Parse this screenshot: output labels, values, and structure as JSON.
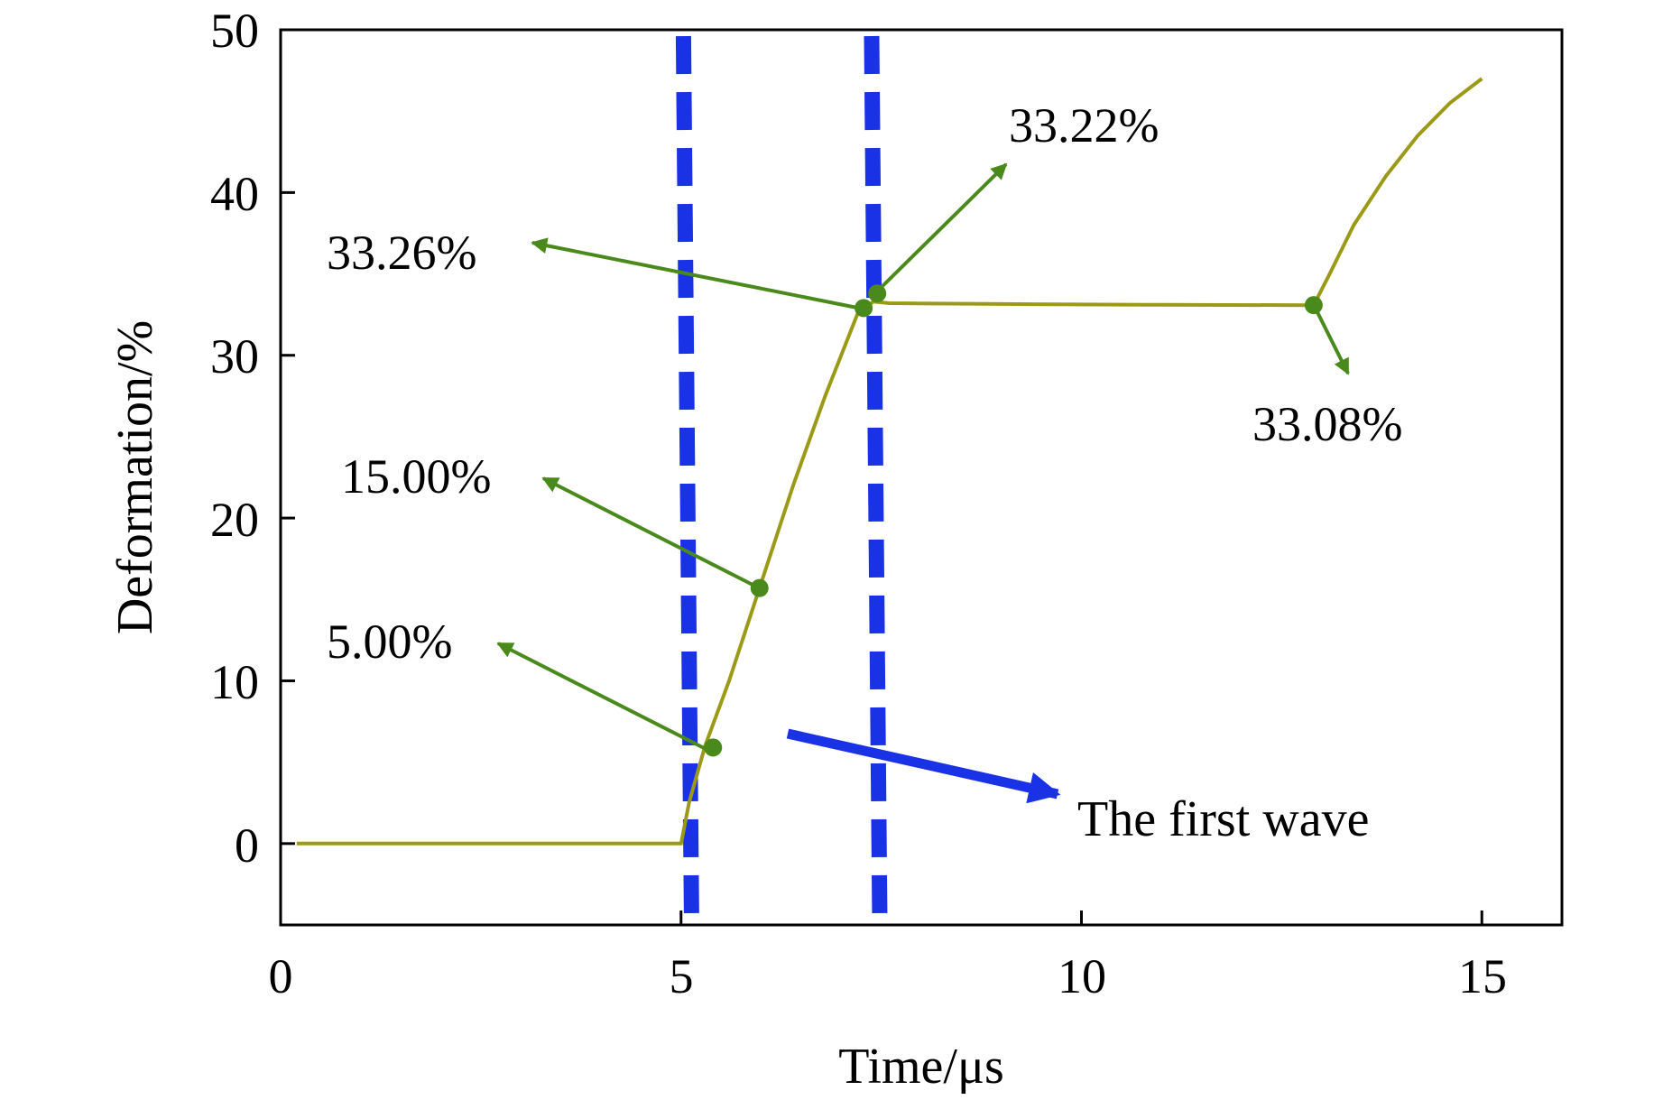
{
  "chart_data": {
    "type": "line",
    "title": "",
    "xlabel": "Time/μs",
    "ylabel": "Deformation/%",
    "xlim": [
      0,
      16
    ],
    "ylim": [
      -5,
      50
    ],
    "xticks": [
      0,
      5,
      10,
      15
    ],
    "yticks": [
      0,
      10,
      20,
      30,
      40,
      50
    ],
    "grid": false,
    "series": [
      {
        "name": "Deformation",
        "color": "#9b9a18",
        "x": [
          0.2,
          5.0,
          5.1,
          5.3,
          5.6,
          6.0,
          6.4,
          6.8,
          7.2,
          7.4,
          7.6,
          9.0,
          11.0,
          12.9,
          13.1,
          13.4,
          13.8,
          14.2,
          14.6,
          15.0
        ],
        "y": [
          0,
          0,
          2.5,
          6,
          10,
          16,
          22,
          27.5,
          32.5,
          33.3,
          33.2,
          33.15,
          33.1,
          33.08,
          35,
          38,
          41,
          43.5,
          45.5,
          47
        ]
      }
    ],
    "markers": [
      {
        "x": 5.4,
        "y": 5.9,
        "label": "5.00%"
      },
      {
        "x": 5.98,
        "y": 15.7,
        "label": "15.00%"
      },
      {
        "x": 7.28,
        "y": 32.9,
        "label": "33.26%"
      },
      {
        "x": 7.45,
        "y": 33.8,
        "label": "33.22%"
      },
      {
        "x": 12.9,
        "y": 33.08,
        "label": "33.08%"
      }
    ],
    "vertical_lines": [
      5.03,
      7.38
    ],
    "annotation": {
      "label": "The first wave"
    },
    "colors": {
      "curve": "#9b9a18",
      "marker": "#4a8a1c",
      "dashed": "#1a32e6",
      "axis": "#000000"
    }
  }
}
